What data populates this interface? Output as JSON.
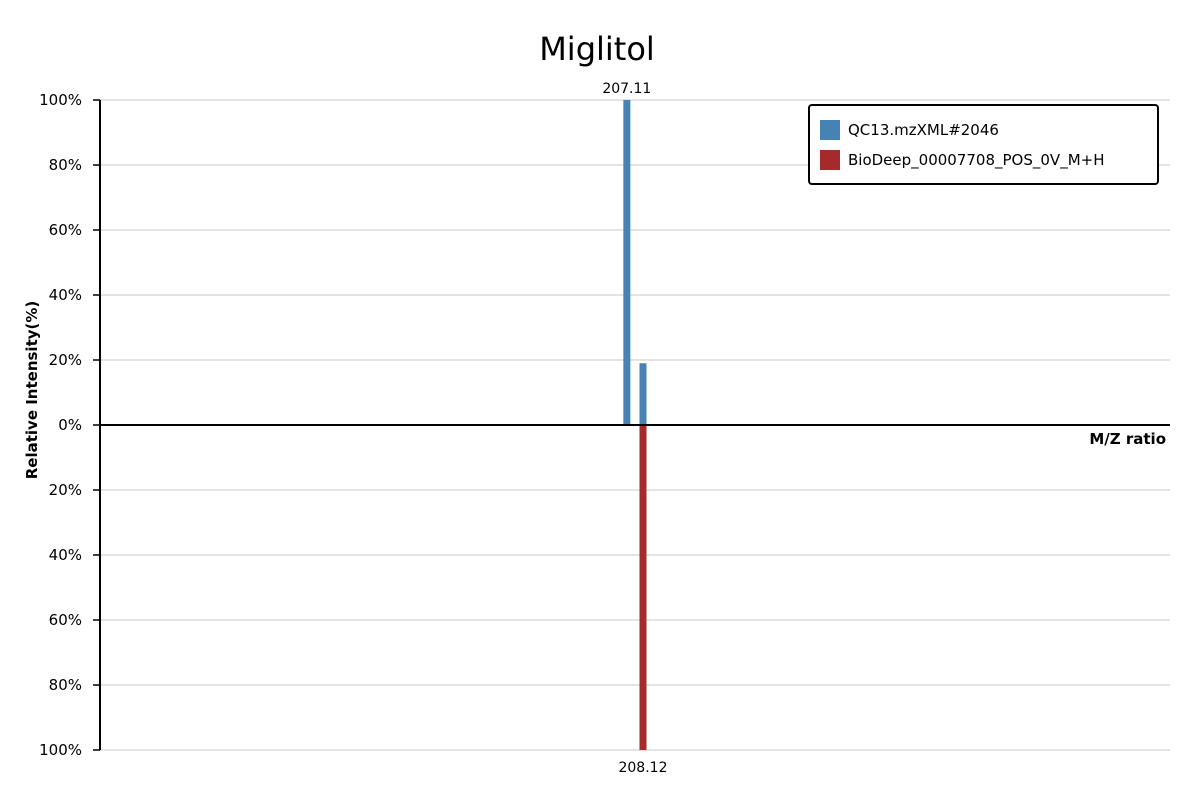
{
  "chart_data": {
    "type": "bar",
    "title": "Miglitol",
    "xlabel": "M/Z ratio",
    "ylabel": "Relative Intensity(%)",
    "ylim": [
      -100,
      100
    ],
    "y_ticks": [
      "100%",
      "80%",
      "60%",
      "40%",
      "20%",
      "0%",
      "20%",
      "40%",
      "60%",
      "80%",
      "100%"
    ],
    "grid": true,
    "legend_position": "top-right",
    "series": [
      {
        "name": "QC13.mzXML#2046",
        "color": "#4682b4",
        "direction": "up",
        "peaks": [
          {
            "mz": 207.11,
            "intensity": 100,
            "label": "207.11"
          },
          {
            "mz": 208.12,
            "intensity": 19
          }
        ]
      },
      {
        "name": "BioDeep_00007708_POS_0V_M+H",
        "color": "#a52a2a",
        "direction": "down",
        "peaks": [
          {
            "mz": 208.12,
            "intensity": 100,
            "label": "208.12"
          }
        ]
      }
    ],
    "x_range": [
      174.17,
      241.07
    ]
  }
}
